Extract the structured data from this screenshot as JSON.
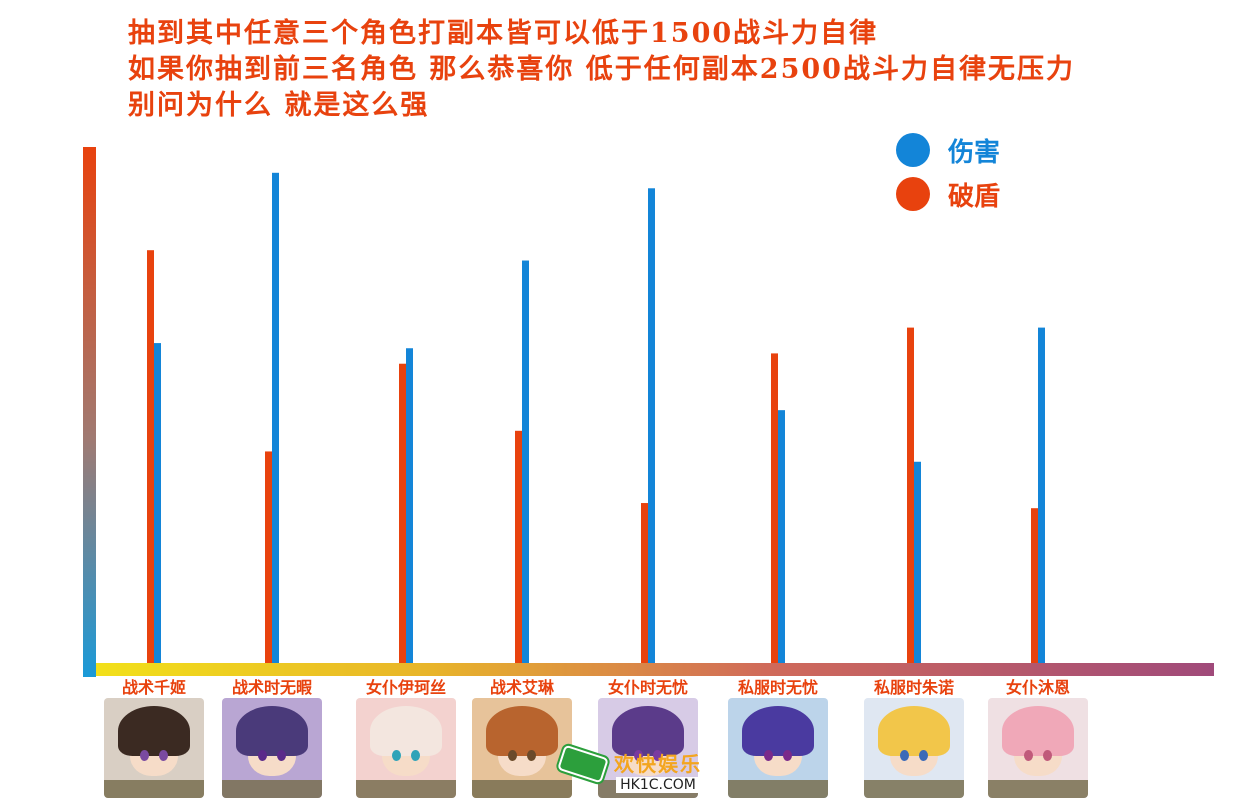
{
  "title_lines": [
    "抽到其中任意三个角色打副本皆可以低于1500战斗力自律",
    "如果你抽到前三名角色 那么恭喜你 低于任何副本2500战斗力自律无压力",
    "别问为什么 就是这么强"
  ],
  "legend": [
    {
      "label": "伤害",
      "color": "#1385d8"
    },
    {
      "label": "破盾",
      "color": "#e8420e"
    }
  ],
  "chart_data": {
    "type": "bar",
    "title": "",
    "xlabel": "",
    "ylabel": "",
    "ylim": [
      0,
      100
    ],
    "categories": [
      "战术千姬",
      "战术时无暇",
      "女仆伊珂丝",
      "战术艾琳",
      "女仆时无忧",
      "私服时无忧",
      "私服时朱诺",
      "女仆沐恩"
    ],
    "series": [
      {
        "name": "破盾",
        "color": "#e8420e",
        "values": [
          80,
          41,
          58,
          45,
          31,
          60,
          65,
          30
        ]
      },
      {
        "name": "伤害",
        "color": "#1385d8",
        "values": [
          62,
          95,
          61,
          78,
          92,
          49,
          39,
          65
        ]
      }
    ],
    "grid": false,
    "legend_position": "top-right"
  },
  "avatars": [
    {
      "name": "战术千姬",
      "hair": "#3b2a22",
      "bg": "#d9cfc4",
      "eye": "#7a4aa0"
    },
    {
      "name": "战术时无暇",
      "hair": "#4a3a7a",
      "bg": "#b9a6d3",
      "eye": "#5b2a8a"
    },
    {
      "name": "女仆伊珂丝",
      "hair": "#f3e6df",
      "bg": "#f3d2cf",
      "eye": "#2fa3b8"
    },
    {
      "name": "战术艾琳",
      "hair": "#b8642e",
      "bg": "#e7c39a",
      "eye": "#6a4a2a"
    },
    {
      "name": "女仆时无忧",
      "hair": "#5b3b8a",
      "bg": "#d7cbe6",
      "eye": "#7a3aa0"
    },
    {
      "name": "私服时无忧",
      "hair": "#4a3aa0",
      "bg": "#bcd4ea",
      "eye": "#7a2a8a"
    },
    {
      "name": "私服时朱诺",
      "hair": "#f2c64a",
      "bg": "#dfe7f2",
      "eye": "#3b6ab8"
    },
    {
      "name": "女仆沐恩",
      "hair": "#f0a8b8",
      "bg": "#efe0e3",
      "eye": "#c05a7a"
    }
  ],
  "watermark": {
    "brand": "欢快娱乐",
    "site": "HK1C.COM"
  }
}
